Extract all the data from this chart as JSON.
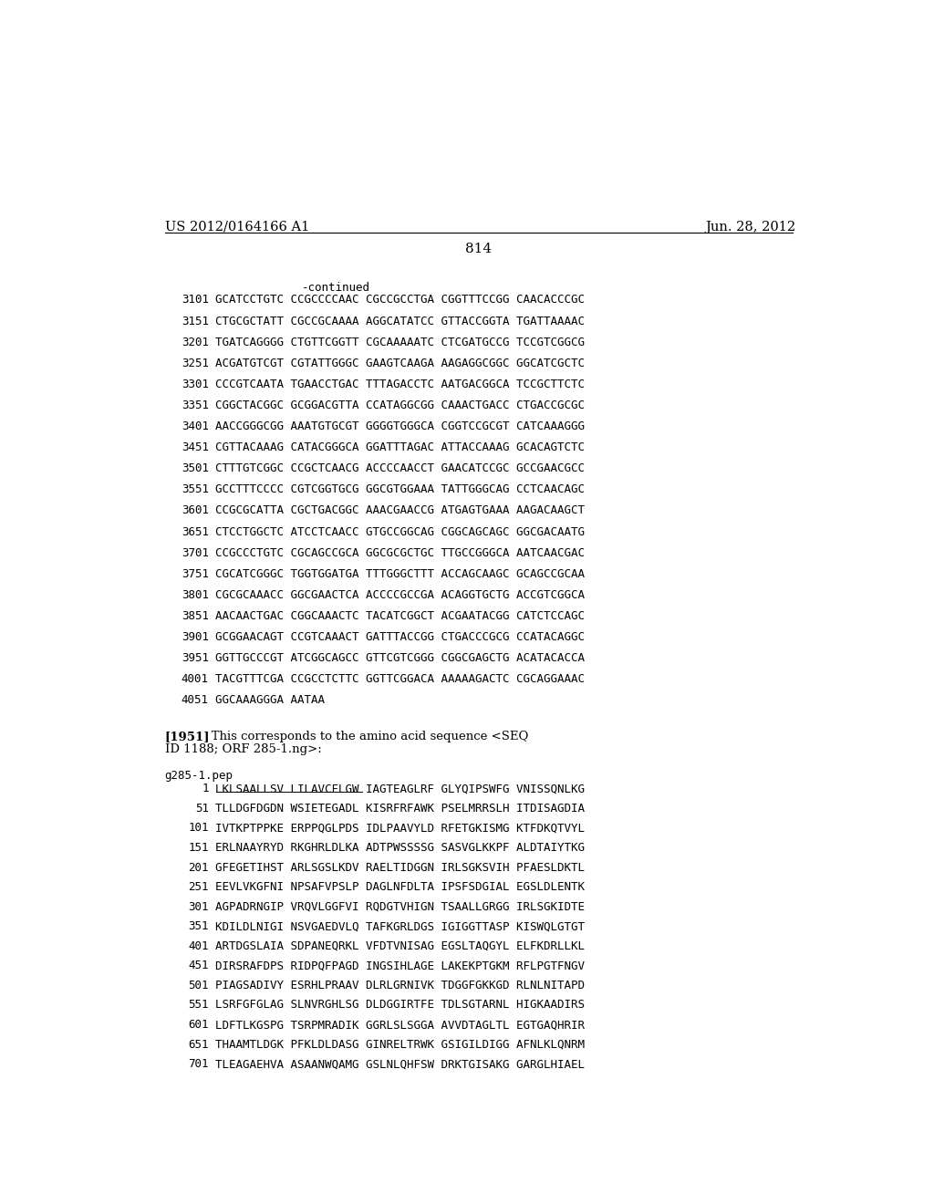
{
  "header_left": "US 2012/0164166 A1",
  "header_right": "Jun. 28, 2012",
  "page_number": "814",
  "continued_label": "-continued",
  "dna_lines": [
    [
      "3101",
      "GCATCCTGTC CCGCCCCAAC CGCCGCCTGA CGGTTTCCGG CAACACCCGC"
    ],
    [
      "3151",
      "CTGCGCTATT CGCCGCAAAA AGGCATATCC GTTACCGGTA TGATTAAAAC"
    ],
    [
      "3201",
      "TGATCAGGGG CTGTTCGGTT CGCAAAAATC CTCGATGCCG TCCGTCGGCG"
    ],
    [
      "3251",
      "ACGATGTCGT CGTATTGGGC GAAGTCAAGA AAGAGGCGGC GGCATCGCTC"
    ],
    [
      "3301",
      "CCCGTCAATA TGAACCTGAC TTTAGACCTC AATGACGGCA TCCGCTTCTC"
    ],
    [
      "3351",
      "CGGCTACGGC GCGGACGTTA CCATAGGCGG CAAACTGACC CTGACCGCGC"
    ],
    [
      "3401",
      "AACCGGGCGG AAATGTGCGT GGGGTGGGCA CGGTCCGCGT CATCAAAGGG"
    ],
    [
      "3451",
      "CGTTACAAAG CATACGGGCA GGATTTAGAC ATTACCAAAG GCACAGTCTC"
    ],
    [
      "3501",
      "CTTTGTCGGC CCGCTCAACG ACCCCAACCT GAACATCCGC GCCGAACGCC"
    ],
    [
      "3551",
      "GCCTTTCCCC CGTCGGTGCG GGCGTGGAAA TATTGGGCAG CCTCAACAGC"
    ],
    [
      "3601",
      "CCGCGCATTA CGCTGACGGC AAACGAACCG ATGAGTGAAA AAGACAAGCT"
    ],
    [
      "3651",
      "CTCCTGGCTC ATCCTCAACC GTGCCGGCAG CGGCAGCAGC GGCGACAATG"
    ],
    [
      "3701",
      "CCGCCCTGTC CGCAGCCGCA GGCGCGCTGC TTGCCGGGCA AATCAACGAC"
    ],
    [
      "3751",
      "CGCATCGGGC TGGTGGATGA TTTGGGCTTT ACCAGCAAGC GCAGCCGCAA"
    ],
    [
      "3801",
      "CGCGCAAACC GGCGAACTCA ACCCCGCCGA ACAGGTGCTG ACCGTCGGCA"
    ],
    [
      "3851",
      "AACAACTGAC CGGCAAACTC TACATCGGCT ACGAATACGG CATCTCCAGC"
    ],
    [
      "3901",
      "GCGGAACAGT CCGTCAAACT GATTTACCGG CTGACCCGCG CCATACAGGC"
    ],
    [
      "3951",
      "GGTTGCCCGT ATCGGCAGCC GTTCGTCGGG CGGCGAGCTG ACATACACCA"
    ],
    [
      "4001",
      "TACGTTTCGA CCGCCTCTTC GGTTCGGACA AAAAAGACTC CGCAGGAAAC"
    ],
    [
      "4051",
      "GGCAAAGGGA AATAA"
    ]
  ],
  "paragraph_label": "[1951]",
  "paragraph_text1": "   This corresponds to the amino acid sequence <SEQ",
  "paragraph_text2": "ID 1188; ORF 285-1.ng>:",
  "protein_header": "g285-1.pep",
  "protein_lines": [
    [
      "1",
      "LKLSAALLSV LILAVCFLGW IAGTEAGLRF GLYQIPSWFG VNISSQNLKG"
    ],
    [
      "51",
      "TLLDGFDGDN WSIETEGADL KISRFRFAWK PSELMRRSLH ITDISAGDIA"
    ],
    [
      "101",
      "IVTKPTPPKE ERPPQGLPDS IDLPAAVYLD RFETGKISMG KTFDKQTVYL"
    ],
    [
      "151",
      "ERLNAAYRYD RKGHRLDLKA ADTPWSSSSG SASVGLKKPF ALDTAIYTKG"
    ],
    [
      "201",
      "GFEGETIHST ARLSGSLKDV RAELTIDGGN IRLSGKSVIH PFAESLDKTL"
    ],
    [
      "251",
      "EEVLVKGFNI NPSAFVPSLP DAGLNFDLTA IPSFSDGIAL EGSLDLENTK"
    ],
    [
      "301",
      "AGPADRNGIP VRQVLGGFVI RQDGTVHIGN TSAALLGRGG IRLSGKIDTE"
    ],
    [
      "351",
      "KDILDLNIGI NSVGAEDVLQ TAFKGRLDGS IGIGGTTASP KISWQLGTGT"
    ],
    [
      "401",
      "ARTDGSLAIA SDPANEQRKL VFDTVNISAG EGSLTAQGYL ELFKDRLLKL"
    ],
    [
      "451",
      "DIRSRAFDPS RIDPQFPAGD INGSIHLAGE LAKEKPTGKM RFLPGTFNGV"
    ],
    [
      "501",
      "PIAGSADIVY ESRHLPRAAV DLRLGRNIVK TDGGFGKKGD RLNLNITAPD"
    ],
    [
      "551",
      "LSRFGFGLAG SLNVRGHLSG DLDGGIRTFE TDLSGTARNL HIGKAADIRS"
    ],
    [
      "601",
      "LDFTLKGSPG TSRPMRADIK GGRLSLSGGA AVVDTAGLTL EGTGAQHRIR"
    ],
    [
      "651",
      "THAAMTLDGK PFKLDLDASG GINRELTRWK GSIGILDIGG AFNLKLQNRM"
    ],
    [
      "701",
      "TLEAGAEHVA ASAANWQAMG GSLNLQHFSW DRKTGISAKG GARGLHIAEL"
    ]
  ],
  "underline_char_count": 32,
  "bg_color": "#ffffff",
  "text_color": "#000000",
  "font_size_header": 10.5,
  "font_size_body": 9.0,
  "font_size_page": 11.0
}
